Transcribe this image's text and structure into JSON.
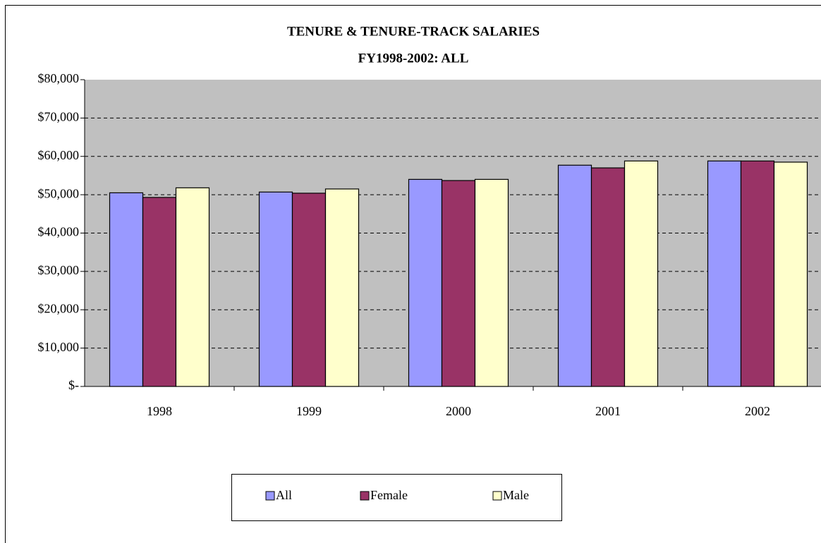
{
  "chart_data": {
    "type": "bar",
    "title": "TENURE & TENURE-TRACK SALARIES",
    "subtitle": "FY1998-2002: ALL",
    "categories": [
      "1998",
      "1999",
      "2000",
      "2001",
      "2002"
    ],
    "series": [
      {
        "name": "All",
        "color": "#9999ff",
        "values": [
          50500,
          50700,
          54000,
          57700,
          58800
        ]
      },
      {
        "name": "Female",
        "color": "#993366",
        "values": [
          49300,
          50400,
          53700,
          57000,
          58800
        ]
      },
      {
        "name": "Male",
        "color": "#ffffcc",
        "values": [
          51800,
          51500,
          54000,
          58800,
          58500
        ]
      }
    ],
    "ylim": [
      0,
      80000
    ],
    "yticks": [
      {
        "value": 0,
        "label": "$-"
      },
      {
        "value": 10000,
        "label": "$10,000"
      },
      {
        "value": 20000,
        "label": "$20,000"
      },
      {
        "value": 30000,
        "label": "$30,000"
      },
      {
        "value": 40000,
        "label": "$40,000"
      },
      {
        "value": 50000,
        "label": "$50,000"
      },
      {
        "value": 60000,
        "label": "$60,000"
      },
      {
        "value": 70000,
        "label": "$70,000"
      },
      {
        "value": 80000,
        "label": "$80,000"
      }
    ],
    "grid": true,
    "plot_background": "#c0c0c0",
    "legend": "bottom"
  }
}
